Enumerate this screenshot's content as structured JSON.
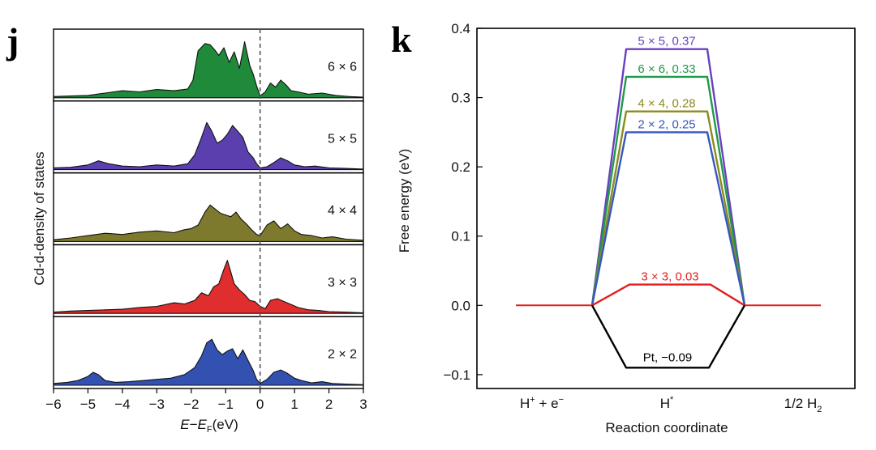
{
  "panel_j": {
    "letter": "j",
    "chart_data": {
      "type": "area",
      "xlabel_parts": [
        "E",
        "−",
        "E",
        "F",
        "(eV)"
      ],
      "ylabel": "Cd-d-density of states",
      "xlim": [
        -6,
        3
      ],
      "xticks": [
        "−6",
        "−5",
        "−4",
        "−3",
        "−2",
        "−1",
        "0",
        "1",
        "2",
        "3"
      ],
      "fermi_level": 0,
      "series": [
        {
          "name": "6 × 6",
          "color": "#1f8a3a",
          "x": [
            -6,
            -5.5,
            -5.0,
            -4.5,
            -4.0,
            -3.5,
            -3.0,
            -2.5,
            -2.1,
            -1.95,
            -1.8,
            -1.6,
            -1.45,
            -1.3,
            -1.2,
            -1.05,
            -0.9,
            -0.75,
            -0.6,
            -0.45,
            -0.3,
            -0.2,
            -0.1,
            0.0,
            0.15,
            0.3,
            0.45,
            0.6,
            0.75,
            0.9,
            1.1,
            1.4,
            1.8,
            2.2,
            2.6,
            3.0
          ],
          "y": [
            0.02,
            0.03,
            0.04,
            0.08,
            0.12,
            0.1,
            0.14,
            0.12,
            0.15,
            0.3,
            0.8,
            0.92,
            0.9,
            0.8,
            0.72,
            0.85,
            0.6,
            0.78,
            0.5,
            0.95,
            0.55,
            0.4,
            0.2,
            0.03,
            0.1,
            0.25,
            0.18,
            0.3,
            0.22,
            0.12,
            0.1,
            0.06,
            0.08,
            0.04,
            0.02,
            0.01
          ]
        },
        {
          "name": "5 × 5",
          "color": "#5b3fae",
          "x": [
            -6,
            -5.5,
            -5.0,
            -4.7,
            -4.4,
            -4.0,
            -3.5,
            -3.0,
            -2.5,
            -2.1,
            -1.9,
            -1.7,
            -1.55,
            -1.4,
            -1.25,
            -1.1,
            -0.95,
            -0.8,
            -0.65,
            -0.5,
            -0.35,
            -0.2,
            -0.1,
            0.0,
            0.2,
            0.4,
            0.6,
            0.8,
            1.0,
            1.3,
            1.6,
            2.0,
            2.5,
            3.0
          ],
          "y": [
            0.03,
            0.04,
            0.08,
            0.15,
            0.1,
            0.06,
            0.05,
            0.08,
            0.06,
            0.1,
            0.25,
            0.55,
            0.8,
            0.65,
            0.45,
            0.5,
            0.6,
            0.75,
            0.65,
            0.55,
            0.3,
            0.2,
            0.1,
            0.03,
            0.05,
            0.12,
            0.2,
            0.15,
            0.08,
            0.05,
            0.06,
            0.03,
            0.02,
            0.01
          ]
        },
        {
          "name": "4 × 4",
          "color": "#7d7a2e",
          "x": [
            -6,
            -5.5,
            -5.0,
            -4.5,
            -4.0,
            -3.5,
            -3.0,
            -2.5,
            -2.2,
            -2.0,
            -1.8,
            -1.6,
            -1.45,
            -1.3,
            -1.15,
            -1.0,
            -0.85,
            -0.7,
            -0.55,
            -0.4,
            -0.25,
            -0.1,
            0.0,
            0.2,
            0.4,
            0.6,
            0.8,
            1.0,
            1.2,
            1.5,
            1.8,
            2.1,
            2.5,
            3.0
          ],
          "y": [
            0.03,
            0.06,
            0.1,
            0.14,
            0.12,
            0.16,
            0.18,
            0.15,
            0.2,
            0.22,
            0.28,
            0.5,
            0.62,
            0.55,
            0.48,
            0.45,
            0.42,
            0.5,
            0.38,
            0.3,
            0.2,
            0.12,
            0.1,
            0.28,
            0.35,
            0.22,
            0.3,
            0.18,
            0.12,
            0.1,
            0.06,
            0.08,
            0.04,
            0.02
          ]
        },
        {
          "name": "3 × 3",
          "color": "#e02d2d",
          "x": [
            -6,
            -5.5,
            -5.0,
            -4.5,
            -4.0,
            -3.5,
            -3.0,
            -2.5,
            -2.2,
            -1.9,
            -1.7,
            -1.5,
            -1.35,
            -1.2,
            -1.05,
            -0.95,
            -0.85,
            -0.75,
            -0.6,
            -0.45,
            -0.3,
            -0.15,
            0.0,
            0.15,
            0.3,
            0.5,
            0.7,
            0.9,
            1.1,
            1.4,
            1.7,
            2.0,
            2.5,
            3.0
          ],
          "y": [
            0.02,
            0.04,
            0.05,
            0.06,
            0.07,
            0.1,
            0.12,
            0.18,
            0.16,
            0.22,
            0.35,
            0.3,
            0.45,
            0.5,
            0.75,
            0.9,
            0.7,
            0.5,
            0.4,
            0.32,
            0.22,
            0.2,
            0.12,
            0.08,
            0.22,
            0.25,
            0.2,
            0.15,
            0.1,
            0.06,
            0.05,
            0.03,
            0.02,
            0.01
          ]
        },
        {
          "name": "2 × 2",
          "color": "#3251b0",
          "x": [
            -6,
            -5.6,
            -5.3,
            -5.0,
            -4.85,
            -4.7,
            -4.5,
            -4.2,
            -3.8,
            -3.4,
            -3.0,
            -2.6,
            -2.2,
            -1.9,
            -1.7,
            -1.55,
            -1.4,
            -1.25,
            -1.1,
            -0.95,
            -0.8,
            -0.65,
            -0.5,
            -0.35,
            -0.2,
            -0.1,
            0.0,
            0.2,
            0.4,
            0.6,
            0.8,
            1.0,
            1.2,
            1.5,
            1.8,
            2.1,
            2.5,
            3.0
          ],
          "y": [
            0.03,
            0.05,
            0.08,
            0.15,
            0.22,
            0.18,
            0.08,
            0.05,
            0.06,
            0.08,
            0.1,
            0.12,
            0.18,
            0.3,
            0.5,
            0.72,
            0.78,
            0.6,
            0.52,
            0.58,
            0.62,
            0.45,
            0.6,
            0.42,
            0.25,
            0.1,
            0.03,
            0.1,
            0.22,
            0.26,
            0.2,
            0.12,
            0.08,
            0.04,
            0.06,
            0.03,
            0.02,
            0.01
          ]
        }
      ]
    }
  },
  "panel_k": {
    "letter": "k",
    "chart_data": {
      "type": "line",
      "xlabel": "Reaction coordinate",
      "ylabel": "Free energy (eV)",
      "ylim": [
        -0.12,
        0.4
      ],
      "yticks": [
        "−0.1",
        "0.0",
        "0.1",
        "0.2",
        "0.3",
        "0.4"
      ],
      "categories": [
        {
          "text": "H",
          "sup": "+",
          "text2": " + e",
          "sup2": "−"
        },
        {
          "text": "H",
          "sup": "*",
          "text2": "",
          "sup2": ""
        },
        {
          "text": "1/2 H",
          "sub": "2",
          "text2": "",
          "sup2": ""
        }
      ],
      "series": [
        {
          "label": "5 × 5, 0.37",
          "value": 0.37,
          "color": "#6a3fc0"
        },
        {
          "label": "6 × 6, 0.33",
          "value": 0.33,
          "color": "#1f9a4a"
        },
        {
          "label": "4 × 4, 0.28",
          "value": 0.28,
          "color": "#8c8a1e"
        },
        {
          "label": "2 × 2, 0.25",
          "value": 0.25,
          "color": "#3557c0"
        },
        {
          "label": "3 × 3, 0.03",
          "value": 0.03,
          "color": "#e02020"
        },
        {
          "label": "Pt, −0.09",
          "value": -0.09,
          "color": "#000000"
        }
      ]
    }
  }
}
